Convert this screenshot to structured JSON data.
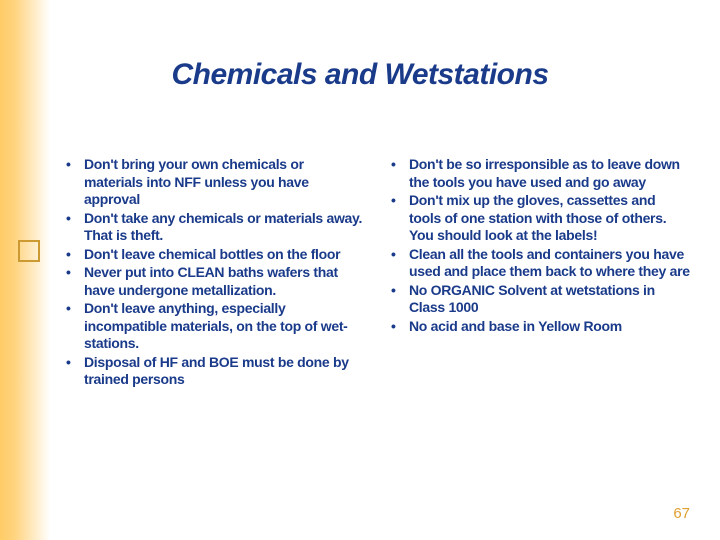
{
  "title": "Chemicals and Wetstations",
  "left_bullets": [
    "Don't bring your own chemicals or materials into NFF unless you have approval",
    "Don't take any chemicals or materials away. That is theft.",
    "Don't leave chemical bottles on the floor",
    "Never put into CLEAN baths wafers that have undergone metallization.",
    "Don't leave anything, especially incompatible materials, on the top of wet-stations.",
    "Disposal of HF and BOE must be done by trained persons"
  ],
  "right_bullets": [
    "Don't be so irresponsible as to leave down the tools you have used and go away",
    "Don't mix up the gloves, cassettes and tools of one station with those of others. You should look at the labels!",
    "Clean all the tools and containers you have used and place them back to where they are",
    "No ORGANIC Solvent at wetstations in Class 1000",
    "No acid and base in Yellow Room"
  ],
  "page_number": "67",
  "colors": {
    "text": "#1a3a8a",
    "accent": "#e0a030",
    "gradient_start": "#ffcc66"
  }
}
